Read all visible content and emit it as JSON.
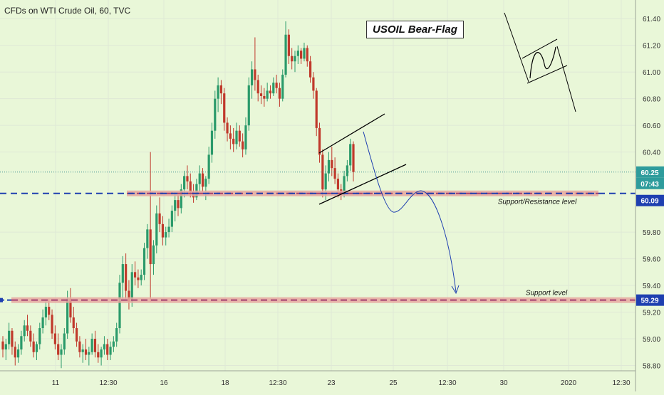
{
  "header": {
    "symbol_label": "CFDs on WTI Crude Oil, 60, TVC"
  },
  "annotation_title": "USOIL Bear-Flag",
  "chart_data": {
    "type": "candlestick",
    "title": "CFDs on WTI Crude Oil, 60, TVC",
    "xlabel": "",
    "ylabel": "",
    "ylim": [
      58.76,
      61.54
    ],
    "price_ticks": [
      "61.40",
      "61.20",
      "61.00",
      "60.80",
      "60.60",
      "60.40",
      "59.80",
      "59.60",
      "59.40",
      "59.20",
      "59.00",
      "58.80"
    ],
    "time_ticks": [
      "11",
      "12:30",
      "16",
      "18",
      "12:30",
      "23",
      "25",
      "12:30",
      "30",
      "2020",
      "12:30"
    ],
    "last_price": "60.25",
    "countdown": "07:43",
    "level_tags": [
      {
        "value": "60.09",
        "color": "#1e3fb0"
      },
      {
        "value": "59.29",
        "color": "#1e3fb0"
      }
    ],
    "levels": [
      {
        "name": "Support/Resistance level",
        "price": 60.09
      },
      {
        "name": "Support level",
        "price": 59.29
      }
    ],
    "ohlc": [
      [
        58.98,
        59.02,
        58.86,
        58.92
      ],
      [
        58.92,
        59.0,
        58.84,
        58.96
      ],
      [
        58.96,
        59.12,
        58.92,
        59.06
      ],
      [
        59.06,
        59.08,
        58.88,
        58.94
      ],
      [
        58.94,
        58.98,
        58.8,
        58.86
      ],
      [
        58.86,
        58.96,
        58.82,
        58.92
      ],
      [
        58.92,
        59.06,
        58.88,
        59.02
      ],
      [
        59.02,
        59.14,
        58.98,
        59.1
      ],
      [
        59.1,
        59.18,
        59.02,
        59.06
      ],
      [
        59.06,
        59.1,
        58.94,
        58.98
      ],
      [
        58.98,
        59.04,
        58.86,
        58.9
      ],
      [
        58.9,
        58.98,
        58.84,
        58.96
      ],
      [
        58.96,
        59.12,
        58.92,
        59.08
      ],
      [
        59.08,
        59.22,
        59.04,
        59.16
      ],
      [
        59.16,
        59.28,
        59.1,
        59.24
      ],
      [
        59.24,
        59.3,
        59.14,
        59.18
      ],
      [
        59.18,
        59.22,
        59.0,
        59.04
      ],
      [
        59.04,
        59.1,
        58.92,
        58.96
      ],
      [
        58.96,
        59.04,
        58.84,
        58.88
      ],
      [
        58.88,
        58.96,
        58.78,
        58.92
      ],
      [
        58.92,
        59.08,
        58.88,
        59.04
      ],
      [
        59.04,
        59.36,
        59.0,
        59.3
      ],
      [
        59.3,
        59.38,
        59.12,
        59.16
      ],
      [
        59.16,
        59.24,
        59.04,
        59.08
      ],
      [
        59.08,
        59.12,
        58.94,
        58.98
      ],
      [
        58.98,
        59.02,
        58.86,
        58.9
      ],
      [
        58.9,
        58.96,
        58.82,
        58.92
      ],
      [
        58.92,
        59.0,
        58.84,
        58.88
      ],
      [
        58.88,
        58.94,
        58.8,
        58.9
      ],
      [
        58.9,
        59.04,
        58.88,
        59.0
      ],
      [
        59.0,
        59.06,
        58.86,
        58.9
      ],
      [
        58.9,
        58.96,
        58.82,
        58.86
      ],
      [
        58.86,
        58.94,
        58.8,
        58.92
      ],
      [
        58.92,
        59.02,
        58.88,
        58.96
      ],
      [
        58.96,
        59.0,
        58.84,
        58.88
      ],
      [
        58.88,
        58.98,
        58.84,
        58.94
      ],
      [
        58.94,
        59.02,
        58.9,
        58.98
      ],
      [
        58.98,
        59.12,
        58.94,
        59.08
      ],
      [
        59.08,
        59.48,
        59.04,
        59.42
      ],
      [
        59.42,
        59.62,
        59.3,
        59.56
      ],
      [
        59.56,
        59.64,
        59.3,
        59.36
      ],
      [
        59.36,
        59.44,
        59.22,
        59.28
      ],
      [
        59.28,
        59.56,
        59.24,
        59.5
      ],
      [
        59.5,
        59.58,
        59.4,
        59.46
      ],
      [
        59.46,
        59.52,
        59.38,
        59.44
      ],
      [
        59.44,
        59.52,
        59.4,
        59.48
      ],
      [
        59.48,
        59.72,
        59.44,
        59.68
      ],
      [
        59.68,
        59.86,
        59.6,
        59.82
      ],
      [
        59.82,
        60.4,
        59.28,
        59.56
      ],
      [
        59.56,
        59.74,
        59.48,
        59.7
      ],
      [
        59.7,
        60.0,
        59.64,
        59.94
      ],
      [
        59.94,
        60.06,
        59.8,
        59.86
      ],
      [
        59.86,
        59.92,
        59.7,
        59.76
      ],
      [
        59.76,
        59.84,
        59.7,
        59.8
      ],
      [
        59.8,
        59.9,
        59.76,
        59.84
      ],
      [
        59.84,
        60.0,
        59.8,
        59.96
      ],
      [
        59.96,
        60.1,
        59.88,
        60.04
      ],
      [
        60.04,
        60.08,
        59.92,
        59.98
      ],
      [
        59.98,
        60.16,
        59.94,
        60.12
      ],
      [
        60.12,
        60.26,
        60.06,
        60.22
      ],
      [
        60.22,
        60.3,
        60.12,
        60.18
      ],
      [
        60.18,
        60.24,
        60.06,
        60.1
      ],
      [
        60.1,
        60.16,
        60.02,
        60.06
      ],
      [
        60.06,
        60.2,
        60.04,
        60.16
      ],
      [
        60.16,
        60.3,
        60.1,
        60.24
      ],
      [
        60.24,
        60.28,
        60.1,
        60.14
      ],
      [
        60.14,
        60.22,
        60.04,
        60.2
      ],
      [
        60.2,
        60.44,
        60.16,
        60.38
      ],
      [
        60.38,
        60.62,
        60.32,
        60.56
      ],
      [
        60.56,
        60.86,
        60.5,
        60.8
      ],
      [
        60.8,
        60.96,
        60.7,
        60.9
      ],
      [
        60.9,
        60.94,
        60.76,
        60.84
      ],
      [
        60.84,
        60.88,
        60.56,
        60.62
      ],
      [
        60.62,
        60.66,
        60.48,
        60.54
      ],
      [
        60.54,
        60.6,
        60.42,
        60.5
      ],
      [
        60.5,
        60.58,
        60.4,
        60.46
      ],
      [
        60.46,
        60.62,
        60.42,
        60.56
      ],
      [
        60.56,
        60.6,
        60.44,
        60.48
      ],
      [
        60.48,
        60.54,
        60.36,
        60.42
      ],
      [
        60.42,
        60.66,
        60.38,
        60.6
      ],
      [
        60.6,
        60.96,
        60.56,
        60.9
      ],
      [
        60.9,
        61.08,
        60.8,
        61.02
      ],
      [
        61.02,
        61.26,
        60.86,
        60.94
      ],
      [
        60.94,
        60.98,
        60.78,
        60.84
      ],
      [
        60.84,
        60.9,
        60.76,
        60.82
      ],
      [
        60.82,
        60.88,
        60.74,
        60.8
      ],
      [
        60.8,
        60.92,
        60.78,
        60.86
      ],
      [
        60.86,
        60.9,
        60.8,
        60.84
      ],
      [
        60.84,
        60.96,
        60.82,
        60.92
      ],
      [
        60.92,
        60.98,
        60.84,
        60.88
      ],
      [
        60.88,
        60.92,
        60.74,
        60.8
      ],
      [
        60.8,
        61.02,
        60.78,
        60.98
      ],
      [
        60.98,
        61.38,
        60.96,
        61.28
      ],
      [
        61.28,
        61.32,
        61.06,
        61.12
      ],
      [
        61.12,
        61.18,
        61.02,
        61.08
      ],
      [
        61.08,
        61.16,
        61.0,
        61.12
      ],
      [
        61.12,
        61.2,
        61.06,
        61.16
      ],
      [
        61.16,
        61.18,
        61.06,
        61.1
      ],
      [
        61.1,
        61.22,
        61.08,
        61.18
      ],
      [
        61.18,
        61.2,
        61.04,
        61.08
      ],
      [
        61.08,
        61.12,
        60.92,
        60.96
      ],
      [
        60.96,
        61.0,
        60.8,
        60.86
      ],
      [
        60.86,
        60.88,
        60.52,
        60.58
      ],
      [
        60.58,
        60.62,
        60.32,
        60.38
      ],
      [
        60.38,
        60.42,
        60.06,
        60.12
      ],
      [
        60.12,
        60.3,
        60.04,
        60.24
      ],
      [
        60.24,
        60.4,
        60.18,
        60.34
      ],
      [
        60.34,
        60.44,
        60.22,
        60.28
      ],
      [
        60.28,
        60.36,
        60.16,
        60.2
      ],
      [
        60.2,
        60.24,
        60.06,
        60.12
      ],
      [
        60.12,
        60.16,
        60.04,
        60.08
      ],
      [
        60.08,
        60.26,
        60.06,
        60.22
      ],
      [
        60.22,
        60.34,
        60.18,
        60.3
      ],
      [
        60.3,
        60.5,
        60.26,
        60.46
      ],
      [
        60.46,
        60.48,
        60.18,
        60.25
      ]
    ]
  },
  "icons": {
    "flag_sketch": "bear-flag-diagram"
  }
}
